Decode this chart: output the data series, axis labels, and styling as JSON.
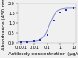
{
  "title": "",
  "xlabel": "Antibody concentration (μg/ml)",
  "ylabel": "Absorbance (450 nm)",
  "x_data": [
    0.001,
    0.003,
    0.01,
    0.03,
    0.1,
    0.3,
    1.0,
    3.0,
    10.0
  ],
  "y_data": [
    0.05,
    0.055,
    0.06,
    0.12,
    0.42,
    1.15,
    1.55,
    1.7,
    1.75
  ],
  "xtick_vals": [
    0.001,
    0.01,
    0.1,
    1.0,
    10.0
  ],
  "xtick_labels": [
    "0.001",
    "0.01",
    "0.1",
    "1",
    "10"
  ],
  "yticks": [
    0.0,
    0.5,
    1.0,
    1.5,
    2.0
  ],
  "ylim": [
    0,
    2.0
  ],
  "xlim_lo": 0.0006,
  "xlim_hi": 15.0,
  "sigmoid_x0": 0.15,
  "sigmoid_k": 3.8,
  "sigmoid_ymin": 0.048,
  "sigmoid_ymax": 1.78,
  "line_color": "#8888cc",
  "marker_color": "#2233aa",
  "bg_color": "#f0f0f0",
  "label_fontsize": 4.0,
  "tick_fontsize": 3.5,
  "linewidth": 0.7,
  "markersize": 1.6
}
